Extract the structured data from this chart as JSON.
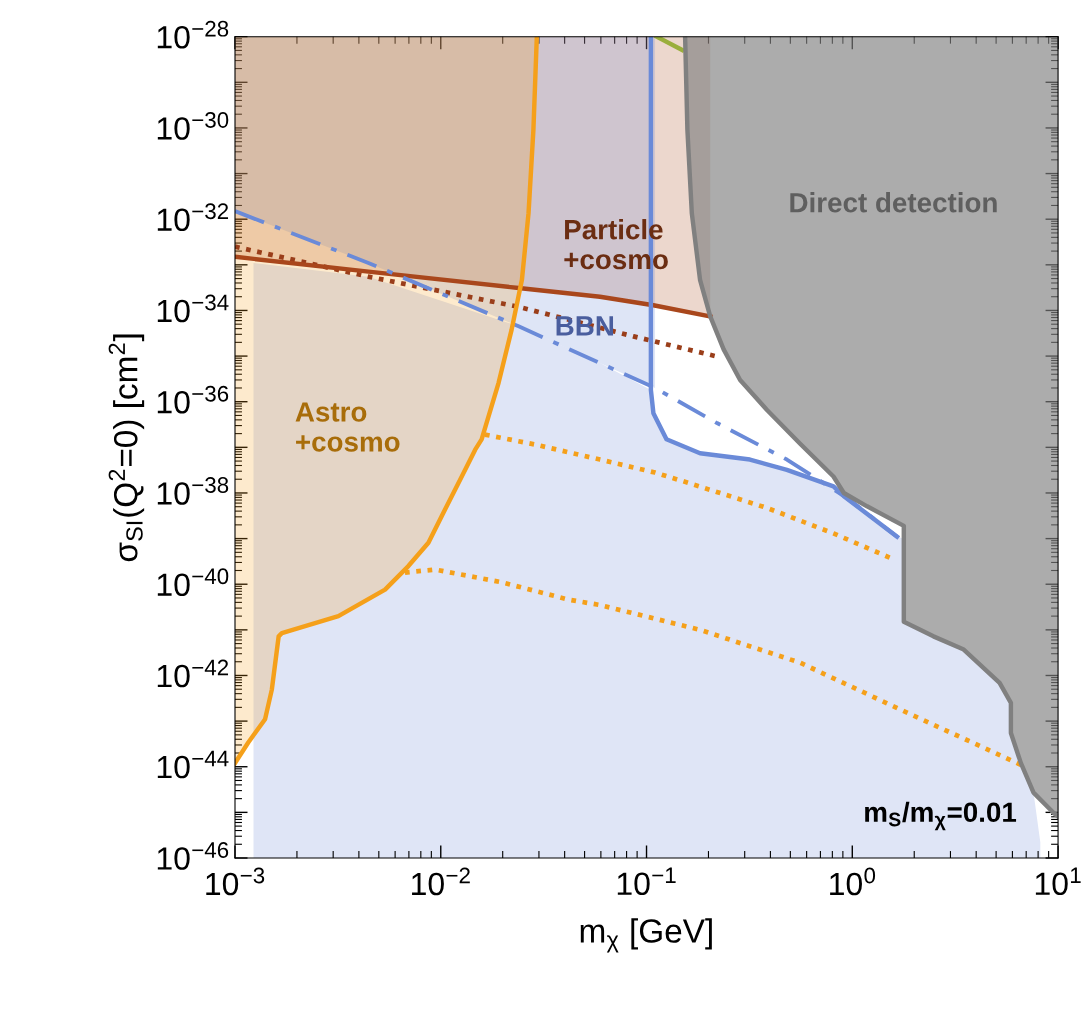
{
  "chart_data": {
    "type": "line",
    "xlabel": "m$_{χ}$ [GeV]",
    "ylabel": "σ$_{SI}$(Q$^{2}$=0) [cm$^{2}$]",
    "log": "xy",
    "grid": false,
    "legend": false,
    "xlim": [
      0.001,
      10
    ],
    "ylim": [
      1e-46,
      1e-28
    ],
    "xticks": [
      {
        "value": 0.001,
        "label": "10$^{−3}$"
      },
      {
        "value": 0.01,
        "label": "10$^{−2}$"
      },
      {
        "value": 0.1,
        "label": "10$^{−1}$"
      },
      {
        "value": 1,
        "label": "10$^{0}$"
      },
      {
        "value": 10,
        "label": "10$^{1}$"
      }
    ],
    "yticks": [
      {
        "value": 1e-46,
        "label": "10$^{−46}$"
      },
      {
        "value": 1e-45,
        "label": null
      },
      {
        "value": 1e-44,
        "label": "10$^{−44}$"
      },
      {
        "value": 1e-43,
        "label": null
      },
      {
        "value": 1e-42,
        "label": "10$^{−42}$"
      },
      {
        "value": 1e-41,
        "label": null
      },
      {
        "value": 1e-40,
        "label": "10$^{−40}$"
      },
      {
        "value": 1e-39,
        "label": null
      },
      {
        "value": 1e-38,
        "label": "10$^{−38}$"
      },
      {
        "value": 1e-37,
        "label": null
      },
      {
        "value": 1e-36,
        "label": "10$^{−36}$"
      },
      {
        "value": 1e-35,
        "label": null
      },
      {
        "value": 1e-34,
        "label": "10$^{−34}$"
      },
      {
        "value": 1e-33,
        "label": null
      },
      {
        "value": 1e-32,
        "label": "10$^{−32}$"
      },
      {
        "value": 1e-31,
        "label": null
      },
      {
        "value": 1e-30,
        "label": "10$^{−30}$"
      },
      {
        "value": 1e-29,
        "label": null
      },
      {
        "value": 1e-28,
        "label": "10$^{−28}$"
      }
    ],
    "series": [
      {
        "type": "area",
        "color": "#dfe5f6",
        "x": [
          0.00123,
          0.00445,
          0.0239,
          0.06,
          0.105,
          0.108,
          0.125,
          0.182,
          0.318,
          0.481,
          0.81,
          0.91,
          1.65,
          1.78,
          1.78,
          2.48,
          3.48,
          5.2,
          5.9,
          5.9,
          6.6,
          7.6,
          8.2
        ],
        "values": [
          1.1e-33,
          5.5e-34,
          4.5e-35,
          6.9e-36,
          1.8e-36,
          5.6e-37,
          1.5e-37,
          7.4e-38,
          5.4e-38,
          3.2e-38,
          1.4e-38,
          8.5e-39,
          1.1e-39,
          1e-39,
          1.5e-41,
          7.2e-42,
          3.7e-42,
          6.9e-43,
          2.5e-43,
          5.5e-44,
          1.2e-44,
          2.7e-45,
          2.2e-46
        ]
      },
      {
        "color": "#9a3e1a",
        "line_style": "dotted",
        "x": [
          0.001,
          0.00445,
          0.0239,
          0.0865,
          0.22
        ],
        "values": [
          2.5e-33,
          5.5e-34,
          1.2e-34,
          2.7e-35,
          9.8e-36
        ]
      },
      {
        "color": "#a9471c",
        "line_style": "solid",
        "x": [
          0.001,
          0.00445,
          0.0239,
          0.0594,
          0.108,
          0.204
        ],
        "values": [
          1.5e-33,
          7.1e-34,
          3.1e-34,
          2e-34,
          1.3e-34,
          7.4e-35
        ],
        "lower": [
          1.5e-33,
          7.1e-34,
          3.1e-34,
          2e-34,
          1.3e-34,
          7.4e-35
        ],
        "upper": [
          1e-28,
          1e-28,
          1e-28,
          1e-28,
          1e-28,
          1e-28
        ]
      },
      {
        "color": "#6a8ad8",
        "line_style": "dashed",
        "x": [
          0.001,
          0.00445,
          0.0239,
          0.11,
          0.22,
          0.481,
          0.94,
          1.65
        ],
        "values": [
          1.5e-32,
          1.1e-33,
          4.5e-35,
          2e-36,
          3.4e-37,
          5.4e-38,
          7.8e-39,
          1.1e-39
        ],
        "lower": [
          1.5e-32,
          1.1e-33,
          4.5e-35,
          2e-36,
          null,
          null,
          null,
          null
        ],
        "upper": [
          1e-28,
          1e-28,
          1e-28,
          1e-28,
          null,
          null,
          null,
          null
        ]
      },
      {
        "color": "#6a8ad8",
        "line_style": "solid",
        "x": [
          0.105,
          0.105,
          0.108,
          0.125,
          0.182,
          0.318,
          0.481,
          0.81,
          0.91,
          1.65
        ],
        "values": [
          1e-28,
          1.8e-36,
          5.6e-37,
          1.5e-37,
          7.4e-38,
          5.4e-38,
          3.2e-38,
          1.4e-38,
          8.5e-39,
          1.1e-39
        ]
      },
      {
        "color": "#f5a01a",
        "line_style": "dotted",
        "x": [
          0.0164,
          0.0288,
          0.0594,
          0.11,
          0.151,
          0.385,
          0.81,
          1.59
        ],
        "values": [
          1.9e-37,
          1.15e-37,
          5.4e-38,
          2.8e-38,
          1.8e-38,
          4.7e-39,
          1.3e-39,
          3.5e-40
        ]
      },
      {
        "color": "#f5a01a",
        "line_style": "dotted",
        "x": [
          0.0067,
          0.0094,
          0.0198,
          0.0418,
          0.0594,
          0.182,
          0.558,
          1.71,
          6.6
        ],
        "values": [
          1.8e-40,
          2.1e-40,
          1.1e-40,
          4.6e-41,
          3.5e-41,
          1e-41,
          1.9e-42,
          1.8e-43,
          1.1e-44
        ]
      },
      {
        "color": "#f5a01a",
        "line_style": "solid",
        "x": [
          0.001,
          0.00116,
          0.0014,
          0.00151,
          0.00163,
          0.00169,
          0.00318,
          0.00536,
          0.00696,
          0.00871,
          0.0101,
          0.01265,
          0.0147,
          0.0158,
          0.0191,
          0.0221,
          0.0248,
          0.0267,
          0.0282,
          0.0293
        ],
        "values": [
          1.2e-44,
          3.4e-44,
          1.1e-43,
          4.9e-43,
          7.2e-42,
          8.5e-42,
          2e-41,
          7.6e-41,
          2.5e-40,
          8.1e-40,
          3.1e-39,
          2.3e-38,
          8.9e-38,
          1.5e-37,
          2.6e-36,
          3.8e-35,
          4.7e-34,
          1.35e-32,
          9.1e-31,
          1e-28
        ],
        "lower": [
          1.2e-44,
          3.4e-44,
          1.1e-43,
          4.9e-43,
          7.2e-42,
          8.5e-42,
          2e-41,
          7.6e-41,
          2.5e-40,
          8.1e-40,
          3.1e-39,
          2.3e-38,
          8.9e-38,
          1.5e-37,
          2.6e-36,
          3.8e-35,
          4.7e-34,
          1.35e-32,
          9.1e-31,
          1e-28
        ],
        "upper": [
          1e-28,
          1e-28,
          1e-28,
          1e-28,
          1e-28,
          1e-28,
          1e-28,
          1e-28,
          1e-28,
          1e-28,
          1e-28,
          1e-28,
          1e-28,
          1e-28,
          1e-28,
          1e-28,
          1e-28,
          1e-28,
          1e-28,
          1e-28
        ]
      },
      {
        "color": "#9aae3c",
        "line_style": "solid",
        "x": [
          0.112,
          0.149
        ],
        "values": [
          1e-28,
          5.1e-29
        ]
      },
      {
        "color": "#808080",
        "line_style": "solid",
        "x": [
          0.154,
          0.158,
          0.166,
          0.182,
          0.204,
          0.237,
          0.285,
          0.385,
          0.558,
          0.81,
          0.91,
          1.18,
          1.78,
          1.78,
          2.48,
          3.48,
          5.2,
          5.9,
          5.9,
          6.6,
          7.6,
          9.5,
          10
        ],
        "values": [
          1e-28,
          9.1e-31,
          1.35e-32,
          4.7e-34,
          7.4e-35,
          1.4e-35,
          3e-36,
          6.6e-37,
          1.2e-37,
          2.3e-38,
          1e-38,
          5.1e-39,
          1.9e-39,
          1.5e-41,
          7.2e-42,
          3.7e-42,
          6.9e-43,
          2.5e-43,
          5.5e-44,
          1.2e-44,
          2.7e-45,
          9.8e-46,
          8.1e-46
        ],
        "lower": [
          1e-28,
          9.1e-31,
          1.35e-32,
          4.7e-34,
          7.4e-35,
          1.4e-35,
          3e-36,
          6.6e-37,
          1.2e-37,
          2.3e-38,
          1e-38,
          5.1e-39,
          1.9e-39,
          1.5e-41,
          7.2e-42,
          3.7e-42,
          6.9e-43,
          2.5e-43,
          5.5e-44,
          1.2e-44,
          2.7e-45,
          9.8e-46,
          8.1e-46
        ],
        "upper": [
          1e-28,
          1e-28,
          1e-28,
          1e-28,
          1e-28,
          1e-28,
          1e-28,
          1e-28,
          1e-28,
          1e-28,
          1e-28,
          1e-28,
          1e-28,
          1e-28,
          1e-28,
          1e-28,
          1e-28,
          1e-28,
          1e-28,
          1e-28,
          1e-28,
          1e-28,
          1e-28
        ]
      }
    ],
    "annotations": [
      "Direct detection",
      "Particle\n+cosmo",
      "BBN",
      "Astro\n+cosmo",
      "m$_{S}$/m$_{χ}$=0.01"
    ]
  }
}
